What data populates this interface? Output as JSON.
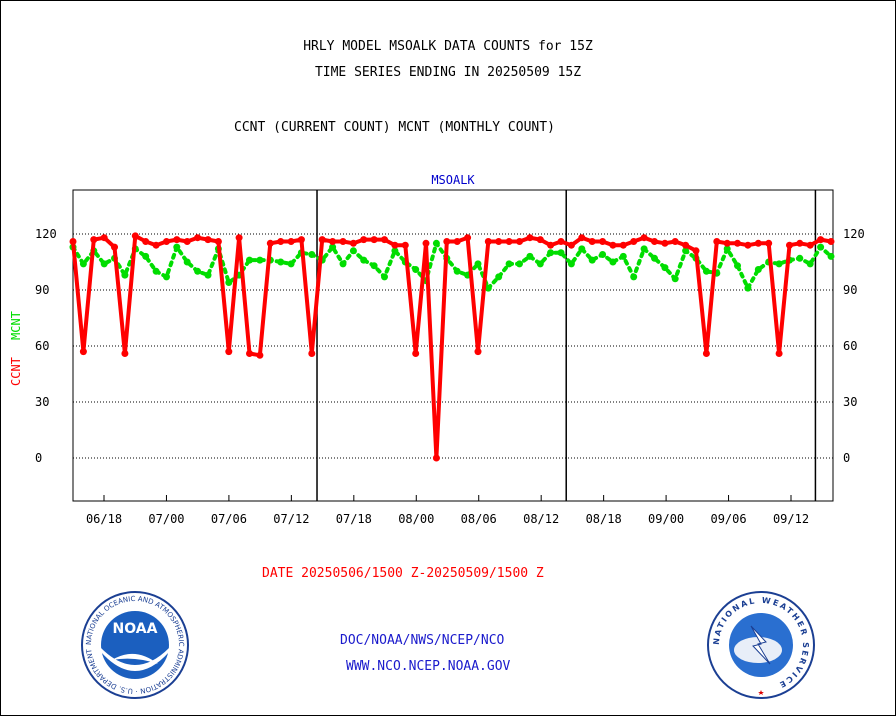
{
  "header": {
    "title_line1": "HRLY MODEL MSOALK DATA COUNTS for 15Z",
    "title_line2": "TIME SERIES ENDING IN 20250509 15Z",
    "subtitle": "CCNT (CURRENT COUNT) MCNT (MONTHLY COUNT)"
  },
  "footer": {
    "date_range": "DATE 20250506/1500 Z-20250509/1500 Z",
    "link1": "DOC/NOAA/NWS/NCEP/NCO",
    "link2": "WWW.NCO.NCEP.NOAA.GOV",
    "noaa_logo_text": "NOAA",
    "noaa_ring_text": "NATIONAL OCEANIC AND ATMOSPHERIC ADMINISTRATION · U.S. DEPARTMENT OF COMMERCE ·",
    "nws_ring_text": "NATIONAL WEATHER SERVICE"
  },
  "colors": {
    "ccnt": "#ff0000",
    "mcnt": "#00dd00",
    "panel_title": "#0000cc",
    "footer_link": "#1a1acc",
    "date_label": "#ff0000"
  },
  "chart_data": {
    "type": "line",
    "panel_title": "MSOALK",
    "ylabel_ccnt": "CCNT",
    "ylabel_mcnt": "MCNT",
    "ylim": [
      -22,
      136
    ],
    "yticks": [
      0,
      30,
      60,
      90,
      120
    ],
    "grid": "horizontal dotted",
    "x_ticks": [
      "06/18",
      "07/00",
      "07/06",
      "07/12",
      "07/18",
      "08/00",
      "08/06",
      "08/12",
      "08/18",
      "09/00",
      "09/06",
      "09/12"
    ],
    "day_boundaries_after_points": [
      23.5,
      47.5,
      71.5
    ],
    "series": [
      {
        "name": "CCNT",
        "style": "solid",
        "values": [
          116,
          57,
          117,
          118,
          113,
          56,
          119,
          116,
          114,
          116,
          117,
          116,
          118,
          117,
          116,
          57,
          118,
          56,
          55,
          115,
          116,
          116,
          117,
          56,
          117,
          116,
          116,
          115,
          117,
          117,
          117,
          114,
          114,
          56,
          115,
          0,
          116,
          116,
          118,
          57,
          116,
          116,
          116,
          116,
          118,
          117,
          114,
          116,
          114,
          118,
          116,
          116,
          114,
          114,
          116,
          118,
          116,
          115,
          116,
          114,
          111,
          56,
          116,
          115,
          115,
          114,
          115,
          115,
          56,
          114,
          115,
          114,
          117,
          116
        ]
      },
      {
        "name": "MCNT",
        "style": "dotted",
        "values": [
          113,
          104,
          111,
          104,
          107,
          98,
          112,
          108,
          100,
          97,
          113,
          105,
          100,
          98,
          112,
          94,
          98,
          106,
          106,
          106,
          105,
          104,
          110,
          109,
          106,
          113,
          104,
          111,
          106,
          103,
          97,
          111,
          105,
          101,
          95,
          115,
          107,
          100,
          98,
          104,
          91,
          97,
          104,
          104,
          108,
          104,
          110,
          110,
          104,
          112,
          106,
          109,
          105,
          108,
          97,
          112,
          107,
          102,
          96,
          111,
          107,
          100,
          99,
          112,
          103,
          91,
          101,
          105,
          104,
          106,
          107,
          104,
          113,
          108
        ]
      }
    ]
  }
}
